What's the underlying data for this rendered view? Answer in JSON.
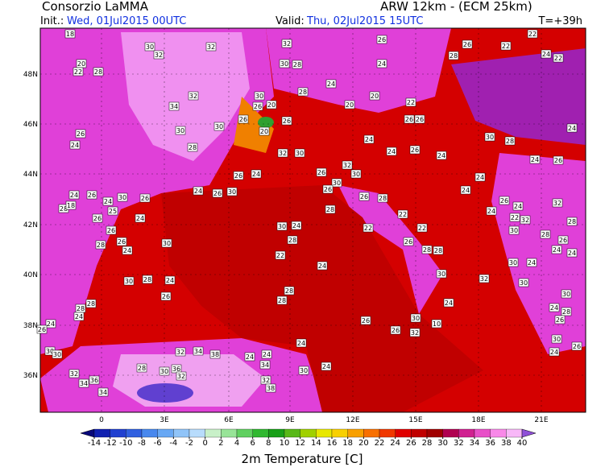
{
  "header": {
    "source": "Consorzio LaMMA",
    "model": "ARW 12km - (ECM 25km)",
    "init_label": "Init.:",
    "init": "Wed, 01Jul2015 00UTC",
    "valid_label": "Valid:",
    "valid": "Thu, 02Jul2015 15UTC",
    "lead": "T=+39h"
  },
  "map": {
    "lat_labels": [
      "48N",
      "46N",
      "44N",
      "42N",
      "40N",
      "38N",
      "36N"
    ],
    "lon_labels": [
      "0",
      "3E",
      "6E",
      "9E",
      "12E",
      "15E",
      "18E",
      "21E"
    ],
    "stations": [
      "18",
      "30",
      "32",
      "32",
      "32",
      "26",
      "26",
      "22",
      "22",
      "20",
      "22",
      "28",
      "30",
      "28",
      "24",
      "28",
      "22",
      "24",
      "32",
      "34",
      "30",
      "24",
      "28",
      "20",
      "20",
      "22",
      "26",
      "20",
      "30",
      "30",
      "26",
      "26",
      "20",
      "26",
      "26",
      "30",
      "28",
      "24",
      "26",
      "24",
      "32",
      "30",
      "24",
      "24",
      "26",
      "24",
      "26",
      "28",
      "26",
      "24",
      "26",
      "32",
      "30",
      "24",
      "24",
      "24",
      "26",
      "24",
      "30",
      "26",
      "24",
      "26",
      "30",
      "30",
      "26",
      "28",
      "26",
      "24",
      "26",
      "24",
      "32",
      "28",
      "18",
      "26",
      "25",
      "24",
      "28",
      "22",
      "24",
      "22",
      "32",
      "28",
      "26",
      "30",
      "24",
      "22",
      "22",
      "30",
      "28",
      "28",
      "26",
      "24",
      "28",
      "30",
      "26",
      "28",
      "28",
      "24",
      "26",
      "22",
      "24",
      "30",
      "24",
      "24",
      "30",
      "32",
      "30",
      "30",
      "28",
      "24",
      "28",
      "26",
      "28",
      "30",
      "28",
      "28",
      "24",
      "24",
      "24",
      "28",
      "26",
      "30",
      "10",
      "26",
      "24",
      "26",
      "26",
      "32",
      "30",
      "30",
      "32",
      "34",
      "36",
      "38",
      "24",
      "24",
      "24",
      "24",
      "30",
      "26",
      "24",
      "32",
      "36",
      "34",
      "34",
      "28",
      "30",
      "32",
      "34",
      "30",
      "32",
      "38"
    ]
  },
  "colorbar": {
    "title": "2m Temperature [C]",
    "levels": [
      -14,
      -12,
      -10,
      -8,
      -6,
      -4,
      -2,
      0,
      2,
      4,
      6,
      8,
      10,
      12,
      14,
      16,
      18,
      20,
      22,
      24,
      26,
      28,
      30,
      32,
      34,
      36,
      38,
      40
    ],
    "colors": [
      "#08087a",
      "#1020b0",
      "#2040d0",
      "#3060e0",
      "#4888ee",
      "#68a8f4",
      "#90c4f8",
      "#b8dcfc",
      "#c8f0c8",
      "#98e498",
      "#60d060",
      "#30b830",
      "#18a018",
      "#58b818",
      "#a0d000",
      "#e8e800",
      "#f8d000",
      "#f8a000",
      "#f87000",
      "#f03800",
      "#e00000",
      "#c00000",
      "#a00000",
      "#b00050",
      "#d02090",
      "#e850c8",
      "#f888e8",
      "#f8b8f8",
      "#9050d8"
    ]
  }
}
